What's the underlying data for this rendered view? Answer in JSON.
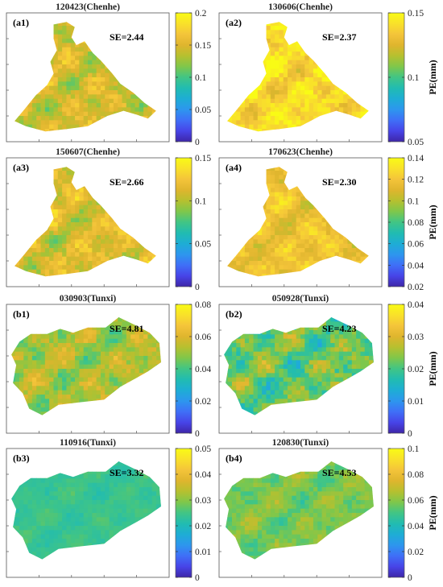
{
  "figure": {
    "colorbar_title": "PE(mm)",
    "colormap": [
      "#3e26a8",
      "#4744e8",
      "#3f6ff7",
      "#2d96ee",
      "#1eadd5",
      "#21bcb1",
      "#41c585",
      "#7fc74b",
      "#b6c02f",
      "#dfb52e",
      "#f4c43a",
      "#f9e12a",
      "#f9fb15"
    ],
    "basin_colors": {
      "Chenhe": "#e8b83a",
      "Tunxi": "#3d9ee6"
    }
  },
  "chart_data": [
    {
      "type": "heatmap",
      "id": "a1",
      "panel_label": "(a1)",
      "title": "120423(Chenhe)",
      "basin": "Chenhe",
      "se_label": "SE=2.44",
      "se": 2.44,
      "clim": [
        0,
        0.2
      ],
      "ticks": [
        "0",
        "0.05",
        "0.1",
        "0.15",
        "0.2"
      ],
      "mean": 0.145,
      "spread": 0.025
    },
    {
      "type": "heatmap",
      "id": "a2",
      "panel_label": "(a2)",
      "title": "130606(Chenhe)",
      "basin": "Chenhe",
      "se_label": "SE=2.37",
      "se": 2.37,
      "clim": [
        0.05,
        0.15
      ],
      "ticks": [
        "0.05",
        "0.1",
        "0.15"
      ],
      "mean": 0.14,
      "spread": 0.012
    },
    {
      "type": "heatmap",
      "id": "a3",
      "panel_label": "(a3)",
      "title": "150607(Chenhe)",
      "basin": "Chenhe",
      "se_label": "SE=2.66",
      "se": 2.66,
      "clim": [
        0,
        0.15
      ],
      "ticks": [
        "0",
        "0.05",
        "0.1",
        "0.15"
      ],
      "mean": 0.112,
      "spread": 0.02
    },
    {
      "type": "heatmap",
      "id": "a4",
      "panel_label": "(a4)",
      "title": "170623(Chenhe)",
      "basin": "Chenhe",
      "se_label": "SE=2.30",
      "se": 2.3,
      "clim": [
        0.02,
        0.14
      ],
      "ticks": [
        "0.02",
        "0.04",
        "0.06",
        "0.08",
        "0.1",
        "0.12",
        "0.14"
      ],
      "mean": 0.118,
      "spread": 0.012
    },
    {
      "type": "heatmap",
      "id": "b1",
      "panel_label": "(b1)",
      "title": "030903(Tunxi)",
      "basin": "Tunxi",
      "se_label": "SE=4.81",
      "se": 4.81,
      "clim": [
        0,
        0.08
      ],
      "ticks": [
        "0",
        "0.02",
        "0.04",
        "0.06",
        "0.08"
      ],
      "mean": 0.052,
      "spread": 0.01
    },
    {
      "type": "heatmap",
      "id": "b2",
      "panel_label": "(b2)",
      "title": "050928(Tunxi)",
      "basin": "Tunxi",
      "se_label": "SE=4.23",
      "se": 4.23,
      "clim": [
        0,
        0.04
      ],
      "ticks": [
        "0",
        "0.01",
        "0.02",
        "0.03",
        "0.04"
      ],
      "mean": 0.022,
      "spread": 0.006
    },
    {
      "type": "heatmap",
      "id": "b3",
      "panel_label": "(b3)",
      "title": "110916(Tunxi)",
      "basin": "Tunxi",
      "se_label": "SE=3.32",
      "se": 3.32,
      "clim": [
        0,
        0.05
      ],
      "ticks": [
        "0",
        "0.01",
        "0.02",
        "0.03",
        "0.04",
        "0.05"
      ],
      "mean": 0.024,
      "spread": 0.002
    },
    {
      "type": "heatmap",
      "id": "b4",
      "panel_label": "(b4)",
      "title": "120830(Tunxi)",
      "basin": "Tunxi",
      "se_label": "SE=4.53",
      "se": 4.53,
      "clim": [
        0,
        0.1
      ],
      "ticks": [
        "0",
        "0.02",
        "0.04",
        "0.06",
        "0.08",
        "0.1"
      ],
      "mean": 0.058,
      "spread": 0.008
    }
  ]
}
